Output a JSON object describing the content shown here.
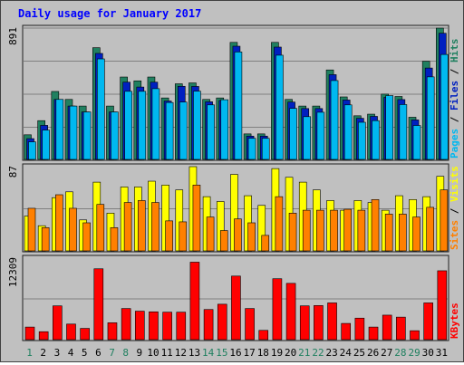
{
  "chart_data": [
    {
      "type": "bar",
      "title": "Daily usage for January 2017",
      "ymax_label": "891",
      "ylim": [
        0,
        891
      ],
      "legend_right": [
        "Pages",
        "Files",
        "Hits"
      ],
      "colors": {
        "Hits": "#208060",
        "Files": "#0020c0",
        "Pages": "#00b8f0"
      },
      "categories": [
        "1",
        "2",
        "3",
        "4",
        "5",
        "6",
        "7",
        "8",
        "9",
        "10",
        "11",
        "12",
        "13",
        "14",
        "15",
        "16",
        "17",
        "18",
        "19",
        "20",
        "21",
        "22",
        "23",
        "24",
        "25",
        "26",
        "27",
        "28",
        "29",
        "30",
        "31"
      ],
      "series": [
        {
          "name": "Hits",
          "values": [
            167,
            263,
            461,
            407,
            362,
            758,
            362,
            559,
            533,
            559,
            417,
            513,
            519,
            407,
            417,
            794,
            173,
            173,
            794,
            407,
            362,
            362,
            607,
            424,
            296,
            307,
            443,
            427,
            286,
            666,
            891
          ]
        },
        {
          "name": "Files",
          "values": [
            141,
            231,
            407,
            362,
            322,
            719,
            322,
            524,
            491,
            524,
            396,
            496,
            495,
            391,
            400,
            768,
            158,
            158,
            762,
            389,
            345,
            345,
            575,
            403,
            279,
            292,
            421,
            406,
            268,
            620,
            856
          ]
        },
        {
          "name": "Pages",
          "values": [
            119,
            199,
            407,
            362,
            322,
            682,
            322,
            462,
            462,
            480,
            386,
            389,
            463,
            370,
            405,
            729,
            143,
            143,
            707,
            346,
            290,
            320,
            535,
            370,
            252,
            263,
            433,
            372,
            230,
            560,
            712
          ]
        }
      ]
    },
    {
      "type": "bar",
      "ymax_label": "87",
      "ylim": [
        0,
        87
      ],
      "legend_right": [
        "Sites",
        "Visits"
      ],
      "colors": {
        "Visits": "#ffff00",
        "Sites": "#ff8000"
      },
      "categories": [
        "1",
        "2",
        "3",
        "4",
        "5",
        "6",
        "7",
        "8",
        "9",
        "10",
        "11",
        "12",
        "13",
        "14",
        "15",
        "16",
        "17",
        "18",
        "19",
        "20",
        "21",
        "22",
        "23",
        "24",
        "25",
        "26",
        "27",
        "28",
        "29",
        "30",
        "31"
      ],
      "series": [
        {
          "name": "Visits",
          "values": [
            36,
            26,
            55,
            61,
            32,
            71,
            39,
            66,
            66,
            72,
            68,
            63,
            87,
            56,
            51,
            79,
            57,
            47,
            85,
            76,
            71,
            63,
            52,
            42,
            52,
            50,
            42,
            57,
            53,
            56,
            77
          ]
        },
        {
          "name": "Sites",
          "values": [
            44,
            24,
            58,
            44,
            29,
            48,
            24,
            50,
            52,
            50,
            31,
            30,
            68,
            35,
            21,
            33,
            29,
            16,
            56,
            39,
            42,
            42,
            42,
            43,
            42,
            53,
            38,
            38,
            35,
            45,
            63
          ]
        }
      ]
    },
    {
      "type": "bar",
      "ymax_label": "12309",
      "ylim": [
        0,
        12309
      ],
      "legend_right": [
        "KBytes"
      ],
      "colors": {
        "KBytes": "#ff0000"
      },
      "categories": [
        "1",
        "2",
        "3",
        "4",
        "5",
        "6",
        "7",
        "8",
        "9",
        "10",
        "11",
        "12",
        "13",
        "14",
        "15",
        "16",
        "17",
        "18",
        "19",
        "20",
        "21",
        "22",
        "23",
        "24",
        "25",
        "26",
        "27",
        "28",
        "29",
        "30",
        "31"
      ],
      "series": [
        {
          "name": "KBytes",
          "values": [
            1900,
            1200,
            5100,
            2350,
            1700,
            10700,
            2550,
            4700,
            4300,
            4200,
            4150,
            4150,
            11700,
            4550,
            5350,
            9600,
            4700,
            1400,
            9200,
            8500,
            5100,
            5150,
            5550,
            2450,
            3250,
            1900,
            3700,
            3400,
            1350,
            5550,
            10400
          ]
        }
      ]
    }
  ],
  "day_labels": [
    "1",
    "2",
    "3",
    "4",
    "5",
    "6",
    "7",
    "8",
    "9",
    "10",
    "11",
    "12",
    "13",
    "14",
    "15",
    "16",
    "17",
    "18",
    "19",
    "20",
    "21",
    "22",
    "23",
    "24",
    "25",
    "26",
    "27",
    "28",
    "29",
    "30",
    "31"
  ],
  "weekend_days": [
    1,
    7,
    8,
    14,
    15,
    21,
    22,
    28,
    29
  ],
  "colors": {
    "weekday_label": "#000000",
    "weekend_label": "#208060",
    "title": "#0000ff",
    "grid": "#808080",
    "plot_bg": "#c0c0c0"
  }
}
